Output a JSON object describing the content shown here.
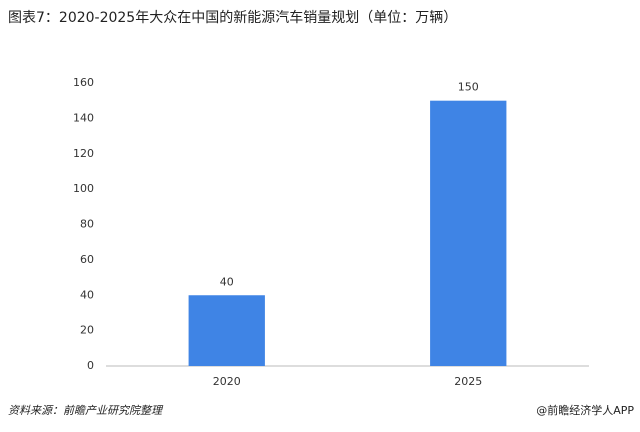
{
  "chart_data": {
    "type": "bar",
    "title": "图表7：2020-2025年大众在中国的新能源汽车销量规划（单位：万辆）",
    "categories": [
      "2020",
      "2025"
    ],
    "values": [
      40,
      150
    ],
    "color": "#3f84e5",
    "ylim": [
      0,
      160
    ],
    "yticks": [
      0,
      20,
      40,
      60,
      80,
      100,
      120,
      140,
      160
    ],
    "grid": false
  },
  "footer": {
    "source": "资料来源：前瞻产业研究院整理",
    "credit": "@前瞻经济学人APP"
  }
}
